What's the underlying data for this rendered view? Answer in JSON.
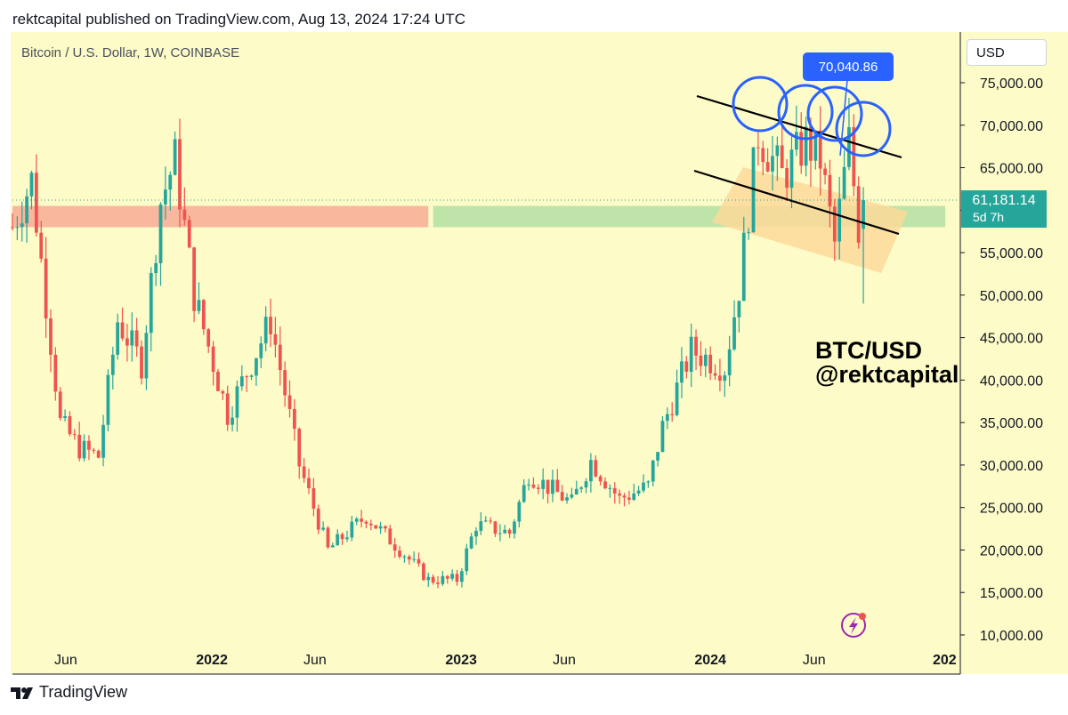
{
  "header": {
    "published": "rektcapital published on TradingView.com, Aug 13, 2024 17:24 UTC"
  },
  "symbol": {
    "title": "Bitcoin / U.S. Dollar, 1W, COINBASE"
  },
  "price_scale": {
    "currency": "USD"
  },
  "current": {
    "price": "61,181.14",
    "countdown": "5d 7h"
  },
  "callout": {
    "value": "70,040.86"
  },
  "watermark": {
    "line1": "BTC/USD",
    "line2": "@rektcapital"
  },
  "footer": {
    "brand": "TradingView"
  },
  "colors": {
    "up": "#26a69a",
    "down": "#ef5350",
    "background": "#fdfbc8",
    "resistance_zone": "#f9b39b",
    "support_zone": "#bce3a8",
    "channel": "#fbd99a",
    "circles": "#2962ff"
  },
  "chart_data": {
    "type": "candlestick",
    "title": "Bitcoin / U.S. Dollar, 1W, COINBASE",
    "y_ticks": [
      "75,000.00",
      "70,000.00",
      "65,000.00",
      "60,000.00",
      "55,000.00",
      "50,000.00",
      "45,000.00",
      "40,000.00",
      "35,000.00",
      "30,000.00",
      "25,000.00",
      "20,000.00",
      "15,000.00",
      "10,000.00"
    ],
    "x_ticks": [
      {
        "label": "Jun",
        "date": "2021-06-01"
      },
      {
        "label": "2022",
        "date": "2022-01-01"
      },
      {
        "label": "Jun",
        "date": "2022-06-01"
      },
      {
        "label": "2023",
        "date": "2023-01-01"
      },
      {
        "label": "Jun",
        "date": "2023-06-01"
      },
      {
        "label": "2024",
        "date": "2024-01-01"
      },
      {
        "label": "Jun",
        "date": "2024-06-01"
      },
      {
        "label": "202",
        "date": "2025-01-01"
      }
    ],
    "ylim": [
      10000,
      78000
    ],
    "xlim": [
      "2021-03-15",
      "2025-01-01"
    ],
    "last_price": 61181.14,
    "annotation_price": 70040.86,
    "anchors": [
      {
        "date": "2021-03-15",
        "close": 58000
      },
      {
        "date": "2021-04-12",
        "close": 63500
      },
      {
        "date": "2021-05-24",
        "close": 35000
      },
      {
        "date": "2021-06-21",
        "close": 32000
      },
      {
        "date": "2021-07-19",
        "close": 31000
      },
      {
        "date": "2021-08-16",
        "close": 47000
      },
      {
        "date": "2021-09-20",
        "close": 42000
      },
      {
        "date": "2021-10-18",
        "close": 61000
      },
      {
        "date": "2021-11-08",
        "close": 66000
      },
      {
        "date": "2021-12-06",
        "close": 50000
      },
      {
        "date": "2022-01-24",
        "close": 36000
      },
      {
        "date": "2022-03-28",
        "close": 47000
      },
      {
        "date": "2022-05-09",
        "close": 30000
      },
      {
        "date": "2022-06-20",
        "close": 20000
      },
      {
        "date": "2022-08-15",
        "close": 24000
      },
      {
        "date": "2022-10-10",
        "close": 19500
      },
      {
        "date": "2022-11-14",
        "close": 16500
      },
      {
        "date": "2022-12-26",
        "close": 16500
      },
      {
        "date": "2023-01-23",
        "close": 23000
      },
      {
        "date": "2023-03-13",
        "close": 22000
      },
      {
        "date": "2023-04-10",
        "close": 29000
      },
      {
        "date": "2023-06-12",
        "close": 25500
      },
      {
        "date": "2023-07-10",
        "close": 30500
      },
      {
        "date": "2023-08-21",
        "close": 26000
      },
      {
        "date": "2023-10-02",
        "close": 27500
      },
      {
        "date": "2023-10-23",
        "close": 34500
      },
      {
        "date": "2023-12-04",
        "close": 43500
      },
      {
        "date": "2024-01-22",
        "close": 41500
      },
      {
        "date": "2024-02-12",
        "close": 51000
      },
      {
        "date": "2024-03-11",
        "close": 69000
      },
      {
        "date": "2024-04-15",
        "close": 64000
      },
      {
        "date": "2024-05-20",
        "close": 68000
      },
      {
        "date": "2024-06-10",
        "close": 66000
      },
      {
        "date": "2024-07-01",
        "close": 56000
      },
      {
        "date": "2024-07-22",
        "close": 68000
      },
      {
        "date": "2024-08-05",
        "close": 58000
      },
      {
        "date": "2024-08-12",
        "close": 61181
      }
    ],
    "zones": [
      {
        "name": "resistance",
        "from": "2021-03-15",
        "to": "2022-11-14",
        "low": 58000,
        "high": 60500
      },
      {
        "name": "support",
        "from": "2022-11-21",
        "to": "2024-12-10",
        "low": 58000,
        "high": 60500
      }
    ]
  }
}
